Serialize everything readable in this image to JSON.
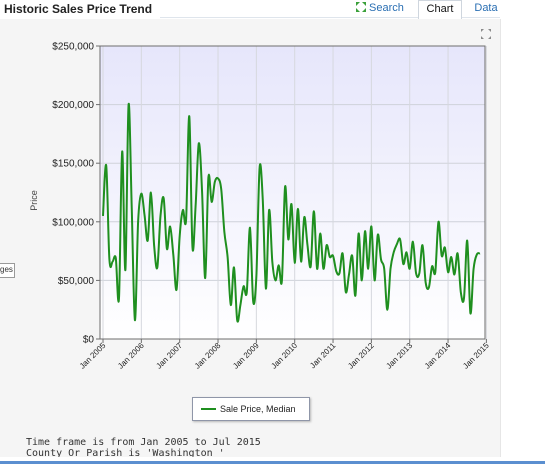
{
  "header": {
    "title": "Historic Sales Price Trend",
    "tabs": [
      {
        "label": "Search",
        "icon": "expand-arrows-icon",
        "active": false
      },
      {
        "label": "Chart",
        "active": true
      },
      {
        "label": "Data",
        "active": false
      }
    ]
  },
  "side_tab_label": "ges",
  "colors": {
    "line": "#1f8f1f",
    "plot_bg_top": "#e6e6fb",
    "plot_bg_bottom": "#ffffff",
    "link": "#2a6fb3"
  },
  "chart_data": {
    "type": "line",
    "title": "",
    "xlabel": "",
    "ylabel": "Price",
    "ylim": [
      0,
      250000
    ],
    "yticks": [
      "$0",
      "$50,000",
      "$100,000",
      "$150,000",
      "$200,000",
      "$250,000"
    ],
    "ytick_values": [
      0,
      50000,
      100000,
      150000,
      200000,
      250000
    ],
    "xticks": [
      "Jan 2005",
      "Jan 2006",
      "Jan 2007",
      "Jan 2008",
      "Jan 2009",
      "Jan 2010",
      "Jan 2011",
      "Jan 2012",
      "Jan 2013",
      "Jan 2014",
      "Jan 2015"
    ],
    "grid": true,
    "legend_position": "bottom-center",
    "series": [
      {
        "name": "Sale Price, Median",
        "x_start": "2005-01",
        "values": [
          105000,
          148000,
          68000,
          66000,
          69000,
          35000,
          160000,
          59000,
          200000,
          110000,
          16000,
          100000,
          124000,
          106000,
          84000,
          125000,
          80000,
          61000,
          105000,
          120000,
          77000,
          96000,
          72000,
          42000,
          88000,
          110000,
          102000,
          190000,
          78000,
          115000,
          167000,
          127000,
          52000,
          138000,
          117000,
          134000,
          137000,
          128000,
          91000,
          70000,
          29000,
          61000,
          16000,
          29000,
          45000,
          40000,
          95000,
          32000,
          54000,
          146000,
          120000,
          43000,
          110000,
          66000,
          50000,
          63000,
          50000,
          130000,
          85000,
          115000,
          65000,
          111000,
          66000,
          104000,
          80000,
          62000,
          109000,
          60000,
          90000,
          60000,
          80000,
          70000,
          71000,
          58000,
          56000,
          73000,
          40000,
          55000,
          71000,
          37000,
          90000,
          50000,
          92000,
          60000,
          96000,
          50000,
          89000,
          68000,
          60000,
          25000,
          60000,
          74000,
          81000,
          85000,
          64000,
          74000,
          60000,
          83000,
          56000,
          56000,
          80000,
          48000,
          44000,
          62000,
          57000,
          100000,
          71000,
          78000,
          57000,
          70000,
          55000,
          73000,
          40000,
          35000,
          84000,
          22000,
          60000,
          72000,
          73000
        ]
      }
    ]
  },
  "footnotes": [
    "Time frame is from Jan 2005 to Jul 2015",
    "County Or Parish is 'Washington '"
  ]
}
